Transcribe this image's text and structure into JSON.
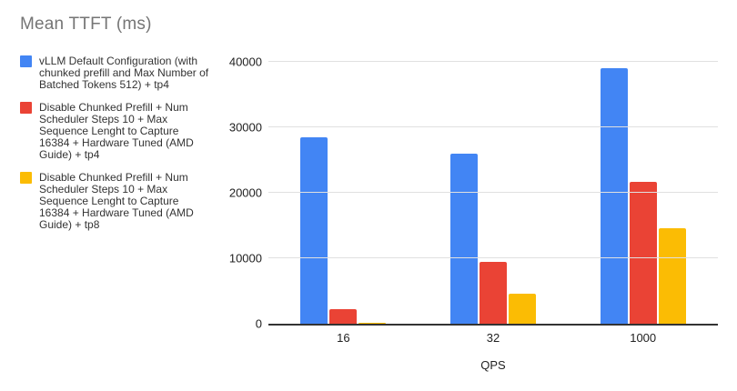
{
  "chart_data": {
    "type": "bar",
    "title": "Mean TTFT (ms)",
    "xlabel": "QPS",
    "ylabel": "",
    "categories": [
      "16",
      "32",
      "1000"
    ],
    "series": [
      {
        "name": "vLLM Default Configuration (with chunked prefill and Max Number of Batched Tokens 512) + tp4",
        "color": "#4285F4",
        "values": [
          28500,
          26000,
          39000
        ]
      },
      {
        "name": "Disable Chunked Prefill + Num Scheduler Steps 10 + Max Sequence Lenght to Capture 16384 + Hardware Tuned (AMD Guide) + tp4",
        "color": "#EA4335",
        "values": [
          2200,
          9400,
          21600
        ]
      },
      {
        "name": "Disable Chunked Prefill + Num Scheduler Steps 10 + Max Sequence Lenght to Capture 16384 + Hardware Tuned (AMD Guide) + tp8",
        "color": "#FBBC04",
        "values": [
          200,
          4600,
          14600
        ]
      }
    ],
    "ylim": [
      0,
      40000
    ],
    "yticks": [
      0,
      10000,
      20000,
      30000,
      40000
    ],
    "grid": true,
    "legend_position": "left"
  },
  "colors": {
    "title_text": "#757575",
    "legend_text": "#333333",
    "axis_text": "#222222",
    "gridline": "#e0e0e0",
    "axis_line": "#333333",
    "background": "#ffffff"
  }
}
